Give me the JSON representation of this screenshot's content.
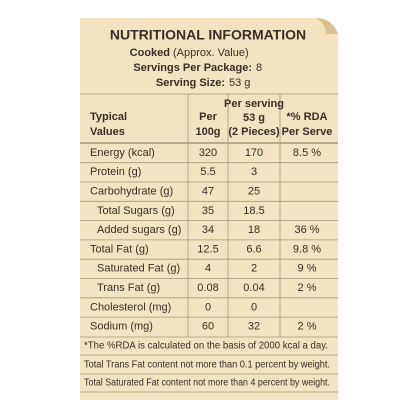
{
  "header": {
    "title": "NUTRITIONAL INFORMATION",
    "cooked": "Cooked",
    "cooked_note": "(Approx. Value)",
    "servings_label": "Servings Per Package:",
    "servings_value": "8",
    "size_label": "Serving Size:",
    "size_value": "53 g"
  },
  "table": {
    "columns": {
      "typical": [
        "Typical",
        "Values"
      ],
      "per100g": [
        "Per",
        "100g"
      ],
      "per_serving": [
        "Per serving",
        "53 g",
        "(2 Pieces)"
      ],
      "rda": [
        "*% RDA",
        "Per Serve"
      ]
    },
    "rows": [
      {
        "label": "Energy (kcal)",
        "per100g": "320",
        "per_serving": "170",
        "rda": "8.5 %"
      },
      {
        "label": "Protein (g)",
        "per100g": "5.5",
        "per_serving": "3"
      },
      {
        "label": "Carbohydrate (g)",
        "per100g": "47",
        "per_serving": "25"
      },
      {
        "label": "Total Sugars (g)",
        "per100g": "35",
        "per_serving": "18.5",
        "sub": true
      },
      {
        "label": "Added sugars (g)",
        "per100g": "34",
        "per_serving": "18",
        "rda": "36 %",
        "sub": true
      },
      {
        "label": "Total Fat (g)",
        "per100g": "12.5",
        "per_serving": "6.6",
        "rda": "9.8 %"
      },
      {
        "label": "Saturated Fat (g)",
        "per100g": "4",
        "per_serving": "2",
        "rda": "9 %",
        "sub": true
      },
      {
        "label": "Trans Fat (g)",
        "per100g": "0.08",
        "per_serving": "0.04",
        "rda": "2 %",
        "sub": true
      },
      {
        "label": "Cholesterol (mg)",
        "per100g": "0",
        "per_serving": "0"
      },
      {
        "label": "Sodium (mg)",
        "per100g": "60",
        "per_serving": "32",
        "rda": "2 %"
      }
    ]
  },
  "footnotes": [
    "*The %RDA is calculated on the basis of 2000 kcal a day.",
    "Total Trans Fat content not more than 0.1 percent by weight.",
    "Total Saturated Fat content not more than 4 percent by weight."
  ]
}
